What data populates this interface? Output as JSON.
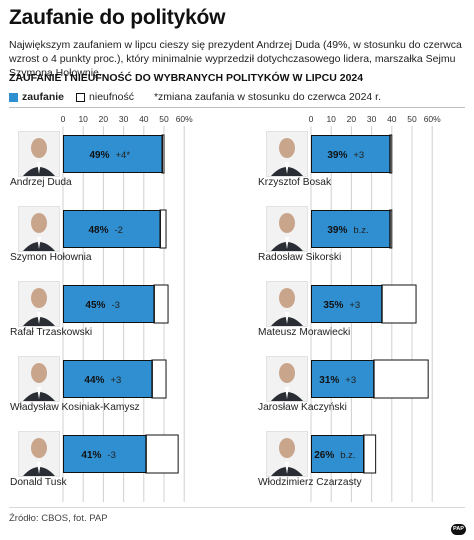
{
  "header": {
    "title": "Zaufanie do polityków",
    "subtitle": "Największym zaufaniem w lipcu cieszy się prezydent Andrzej Duda (49%, w stosunku do  czerwca wzrost o 4 punkty proc.), który minimalnie wyprzedził dotychczasowego lidera, marszałka Sejmu Szymona Hołownię.",
    "section_title": "ZAUFANIE I NIEUFNOŚĆ DO WYBRANYCH POLITYKÓW W LIPCU 2024"
  },
  "legend": {
    "trust_label": "zaufanie",
    "distrust_label": "nieufność",
    "note": "*zmiana zaufania w stosunku do czerwca 2024 r."
  },
  "source": "Źródło: CBOS, fot. PAP",
  "logo_text": "PAP",
  "colors": {
    "trust": "#2f8fd0",
    "distrust": "#ffffff",
    "outline": "#111111",
    "grid": "#d0d0d0"
  },
  "chart_data": [
    {
      "type": "bar",
      "orientation": "horizontal",
      "stacked": true,
      "xlim": [
        0,
        60
      ],
      "ticks": [
        "0",
        "10",
        "20",
        "30",
        "40",
        "50",
        "60%"
      ],
      "grid": true,
      "series": [
        {
          "name": "zaufanie",
          "values": [
            49,
            48,
            45,
            44,
            41
          ]
        },
        {
          "name": "nieufność",
          "values": [
            1,
            3,
            7,
            7,
            16
          ]
        }
      ],
      "categories": [
        "Andrzej Duda",
        "Szymon Hołownia",
        "Rafał Trzaskowski",
        "Władysław Kosiniak-Kamysz",
        "Donald Tusk"
      ],
      "labels": [
        "49%",
        "48%",
        "45%",
        "44%",
        "41%"
      ],
      "changes": [
        "+4*",
        "-2",
        "-3",
        "+3",
        "-3"
      ]
    },
    {
      "type": "bar",
      "orientation": "horizontal",
      "stacked": true,
      "xlim": [
        0,
        60
      ],
      "ticks": [
        "0",
        "10",
        "20",
        "30",
        "40",
        "50",
        "60%"
      ],
      "grid": true,
      "series": [
        {
          "name": "zaufanie",
          "values": [
            39,
            39,
            35,
            31,
            26
          ]
        },
        {
          "name": "nieufność",
          "values": [
            1,
            1,
            17,
            27,
            6
          ]
        }
      ],
      "categories": [
        "Krzysztof Bosak",
        "Radosław Sikorski",
        "Mateusz Morawiecki",
        "Jarosław Kaczyński",
        "Włodzimierz Czarzasty"
      ],
      "labels": [
        "39%",
        "39%",
        "35%",
        "31%",
        "26%"
      ],
      "changes": [
        "+3",
        "b.z.",
        "+3",
        "+3",
        "b.z."
      ]
    }
  ]
}
